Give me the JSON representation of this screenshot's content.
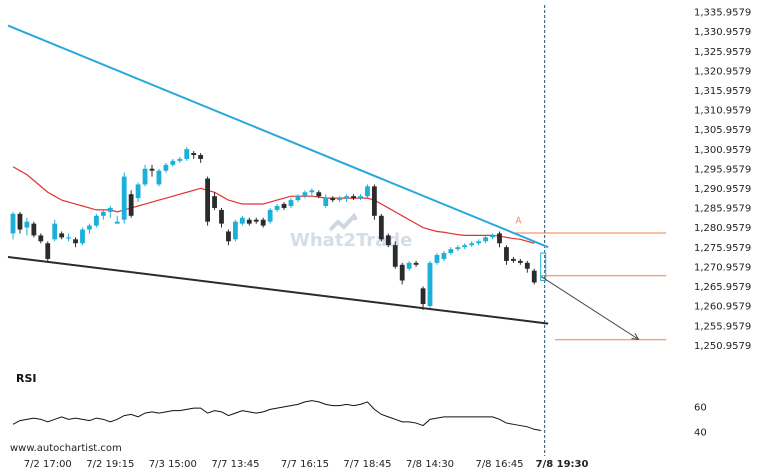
{
  "watermark": "What2Trade",
  "site_url": "www.autochartist.com",
  "colors": {
    "bull": "#1ab0d8",
    "bear": "#2b2b2b",
    "resistance": "#29a8dd",
    "support": "#2b2b2b",
    "ma": "#e53030",
    "level": "#f08040",
    "rsi": "#111111",
    "forecast": "#444444"
  },
  "chart_data": [
    {
      "type": "candlestick",
      "title": "",
      "pattern_label": "A",
      "y_ticks": [
        "1,335.9579",
        "1,330.9579",
        "1,325.9579",
        "1,320.9579",
        "1,315.9579",
        "1,310.9579",
        "1,305.9579",
        "1,300.9579",
        "1,295.9579",
        "1,290.9579",
        "1,285.9579",
        "1,280.9579",
        "1,275.9579",
        "1,270.9579",
        "1,265.9579",
        "1,260.9579",
        "1,255.9579",
        "1,250.9579"
      ],
      "ylim": [
        1248.5,
        1337.5
      ],
      "x_ticks": [
        {
          "label": "7/2 17:00",
          "bar": 5
        },
        {
          "label": "7/2 19:15",
          "bar": 14
        },
        {
          "label": "7/3 15:00",
          "bar": 23
        },
        {
          "label": "7/7 13:45",
          "bar": 32
        },
        {
          "label": "7/7 16:15",
          "bar": 42
        },
        {
          "label": "7/7 18:45",
          "bar": 51
        },
        {
          "label": "7/8 14:30",
          "bar": 60
        },
        {
          "label": "7/8 16:45",
          "bar": 70
        },
        {
          "label": "7/8 19:30",
          "bar": 79,
          "bold": true
        }
      ],
      "ohlc": [
        [
          1279.5,
          1285.0,
          1278.0,
          1284.5
        ],
        [
          1284.5,
          1285.0,
          1279.5,
          1280.5
        ],
        [
          1281.0,
          1283.5,
          1279.0,
          1282.5
        ],
        [
          1282.0,
          1282.5,
          1278.5,
          1279.0
        ],
        [
          1279.0,
          1279.5,
          1277.0,
          1277.5
        ],
        [
          1277.0,
          1277.5,
          1272.5,
          1273.0
        ],
        [
          1278.0,
          1283.0,
          1277.5,
          1282.0
        ],
        [
          1279.5,
          1280.0,
          1278.0,
          1278.5
        ],
        [
          1278.5,
          1279.5,
          1277.5,
          1278.5
        ],
        [
          1278.0,
          1278.5,
          1276.0,
          1277.0
        ],
        [
          1277.0,
          1281.0,
          1276.5,
          1280.5
        ],
        [
          1280.5,
          1282.0,
          1279.5,
          1281.5
        ],
        [
          1281.5,
          1284.5,
          1281.0,
          1284.0
        ],
        [
          1284.0,
          1285.5,
          1283.0,
          1285.0
        ],
        [
          1285.0,
          1286.5,
          1283.5,
          1286.0
        ],
        [
          1282.0,
          1284.0,
          1282.0,
          1282.5
        ],
        [
          1283.0,
          1295.0,
          1282.0,
          1294.0
        ],
        [
          1289.5,
          1290.5,
          1283.5,
          1284.0
        ],
        [
          1288.5,
          1292.5,
          1287.5,
          1292.0
        ],
        [
          1292.0,
          1297.0,
          1291.5,
          1296.0
        ],
        [
          1296.0,
          1297.0,
          1294.0,
          1295.5
        ],
        [
          1292.0,
          1296.0,
          1291.5,
          1295.5
        ],
        [
          1295.5,
          1297.5,
          1295.0,
          1297.0
        ],
        [
          1297.0,
          1298.5,
          1296.5,
          1298.0
        ],
        [
          1298.0,
          1299.0,
          1297.5,
          1298.5
        ],
        [
          1298.5,
          1301.5,
          1298.0,
          1301.0
        ],
        [
          1300.0,
          1300.5,
          1298.5,
          1299.5
        ],
        [
          1299.5,
          1300.0,
          1297.5,
          1298.5
        ],
        [
          1293.5,
          1294.0,
          1281.5,
          1282.5
        ],
        [
          1289.0,
          1290.0,
          1285.5,
          1286.0
        ],
        [
          1285.5,
          1286.0,
          1281.0,
          1282.0
        ],
        [
          1280.0,
          1280.5,
          1276.5,
          1277.5
        ],
        [
          1278.0,
          1283.0,
          1277.5,
          1282.5
        ],
        [
          1282.0,
          1284.0,
          1281.5,
          1283.5
        ],
        [
          1283.0,
          1283.5,
          1281.5,
          1282.0
        ],
        [
          1283.0,
          1283.5,
          1282.0,
          1282.5
        ],
        [
          1283.0,
          1283.5,
          1281.0,
          1281.5
        ],
        [
          1282.5,
          1286.0,
          1282.0,
          1285.5
        ],
        [
          1285.5,
          1287.0,
          1285.0,
          1286.5
        ],
        [
          1287.0,
          1287.5,
          1285.5,
          1286.0
        ],
        [
          1286.5,
          1288.5,
          1286.0,
          1288.0
        ],
        [
          1288.0,
          1289.5,
          1287.5,
          1289.0
        ],
        [
          1289.0,
          1290.5,
          1288.5,
          1290.0
        ],
        [
          1290.0,
          1291.0,
          1289.0,
          1290.5
        ],
        [
          1290.0,
          1290.5,
          1288.5,
          1289.0
        ],
        [
          1286.5,
          1289.5,
          1286.0,
          1288.5
        ],
        [
          1288.5,
          1289.0,
          1287.5,
          1288.0
        ],
        [
          1288.0,
          1289.0,
          1287.5,
          1288.5
        ],
        [
          1288.5,
          1289.5,
          1287.5,
          1289.0
        ],
        [
          1289.0,
          1289.5,
          1288.0,
          1288.5
        ],
        [
          1288.5,
          1289.5,
          1288.0,
          1289.0
        ],
        [
          1289.0,
          1292.0,
          1288.5,
          1291.5
        ],
        [
          1291.5,
          1292.0,
          1283.0,
          1284.0
        ],
        [
          1284.0,
          1284.5,
          1277.5,
          1278.0
        ],
        [
          1279.0,
          1279.5,
          1276.0,
          1276.5
        ],
        [
          1276.5,
          1277.5,
          1270.5,
          1271.0
        ],
        [
          1271.5,
          1272.0,
          1266.5,
          1267.5
        ],
        [
          1270.5,
          1272.5,
          1270.0,
          1272.0
        ],
        [
          1272.0,
          1272.5,
          1271.0,
          1271.5
        ],
        [
          1265.5,
          1266.0,
          1260.0,
          1261.5
        ],
        [
          1261.0,
          1272.5,
          1260.5,
          1272.0
        ],
        [
          1272.0,
          1274.5,
          1271.5,
          1274.0
        ],
        [
          1273.0,
          1275.0,
          1272.5,
          1274.5
        ],
        [
          1274.5,
          1276.0,
          1274.0,
          1275.5
        ],
        [
          1275.5,
          1276.5,
          1275.0,
          1276.0
        ],
        [
          1276.0,
          1277.0,
          1275.5,
          1276.5
        ],
        [
          1276.5,
          1277.5,
          1276.0,
          1277.0
        ],
        [
          1277.0,
          1278.0,
          1276.5,
          1277.5
        ],
        [
          1277.5,
          1279.0,
          1277.0,
          1278.5
        ],
        [
          1278.5,
          1279.5,
          1278.0,
          1279.0
        ],
        [
          1279.5,
          1280.0,
          1276.0,
          1277.0
        ],
        [
          1276.0,
          1276.5,
          1271.5,
          1272.5
        ],
        [
          1273.0,
          1273.5,
          1272.0,
          1272.5
        ],
        [
          1272.5,
          1273.0,
          1271.5,
          1272.0
        ],
        [
          1272.0,
          1272.5,
          1269.5,
          1270.5
        ],
        [
          1270.0,
          1270.5,
          1266.5,
          1267.0
        ]
      ],
      "projection_bar": {
        "low": 1267.5,
        "high": 1274.5
      },
      "ma": [
        1296.5,
        1295.5,
        1294.5,
        1293.0,
        1291.5,
        1290.0,
        1289.0,
        1288.0,
        1287.5,
        1287.0,
        1286.5,
        1286.0,
        1285.5,
        1285.5,
        1285.5,
        1285.0,
        1285.5,
        1286.0,
        1286.5,
        1287.0,
        1287.5,
        1288.0,
        1288.5,
        1289.0,
        1289.5,
        1290.0,
        1290.5,
        1291.0,
        1290.5,
        1290.0,
        1289.0,
        1288.0,
        1287.5,
        1287.0,
        1287.0,
        1287.0,
        1287.0,
        1287.5,
        1288.0,
        1288.5,
        1289.0,
        1289.0,
        1289.0,
        1289.0,
        1288.8,
        1288.5,
        1288.5,
        1288.5,
        1288.5,
        1288.5,
        1288.5,
        1288.5,
        1288.0,
        1287.0,
        1286.0,
        1285.0,
        1284.0,
        1283.0,
        1282.0,
        1281.0,
        1280.5,
        1280.0,
        1279.8,
        1279.5,
        1279.2,
        1279.0,
        1279.0,
        1279.0,
        1279.0,
        1279.0,
        1278.8,
        1278.5,
        1278.2,
        1278.0,
        1277.5,
        1277.0
      ],
      "resistance_line": [
        [
          0,
          1332.5
        ],
        [
          77,
          1276.0
        ]
      ],
      "support_line": [
        [
          0,
          1273.5
        ],
        [
          77,
          1256.5
        ]
      ],
      "forecast_arrow": [
        [
          76,
          1268.5
        ],
        [
          90,
          1252.5
        ]
      ],
      "vertical_marker_bar": 76.5,
      "levels": [
        {
          "value": 1279.6,
          "from": 72,
          "to": 94
        },
        {
          "value": 1268.7,
          "from": 76,
          "to": 94
        },
        {
          "value": 1252.4,
          "from": 78,
          "to": 94
        }
      ],
      "pattern_label_point": [
        72,
        1282.0
      ]
    },
    {
      "type": "line",
      "title": "RSI",
      "y_ticks": [
        "60",
        "40"
      ],
      "ylim": [
        35,
        80
      ],
      "values": [
        46,
        49,
        50,
        51,
        50,
        48,
        50,
        52,
        50,
        51,
        50,
        49,
        51,
        50,
        48,
        50,
        53,
        54,
        52,
        55,
        56,
        55,
        56,
        57,
        57,
        58,
        59,
        59,
        55,
        57,
        56,
        53,
        55,
        57,
        56,
        55,
        56,
        58,
        59,
        60,
        61,
        62,
        64,
        65,
        64,
        62,
        61,
        61,
        62,
        61,
        62,
        64,
        58,
        54,
        52,
        50,
        48,
        48,
        47,
        45,
        50,
        51,
        52,
        52,
        52,
        52,
        52,
        52,
        52,
        52,
        50,
        47,
        46,
        45,
        44,
        42,
        41
      ]
    }
  ]
}
